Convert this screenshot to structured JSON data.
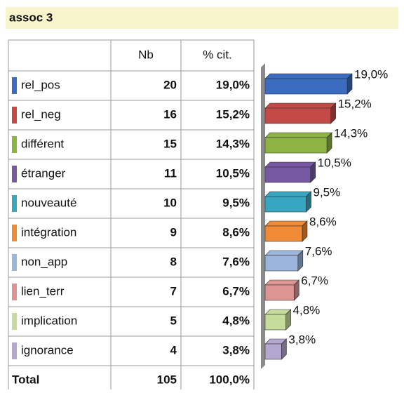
{
  "title": "assoc 3",
  "table": {
    "columns": [
      "Nb",
      "% cit."
    ],
    "rows": [
      {
        "label": "rel_pos",
        "nb": 20,
        "pct": "19,0%"
      },
      {
        "label": "rel_neg",
        "nb": 16,
        "pct": "15,2%"
      },
      {
        "label": "différent",
        "nb": 15,
        "pct": "14,3%"
      },
      {
        "label": "étranger",
        "nb": 11,
        "pct": "10,5%"
      },
      {
        "label": "nouveauté",
        "nb": 10,
        "pct": "9,5%"
      },
      {
        "label": "intégration",
        "nb": 9,
        "pct": "8,6%"
      },
      {
        "label": "non_app",
        "nb": 8,
        "pct": "7,6%"
      },
      {
        "label": "lien_terr",
        "nb": 7,
        "pct": "6,7%"
      },
      {
        "label": "implication",
        "nb": 5,
        "pct": "4,8%"
      },
      {
        "label": "ignorance",
        "nb": 4,
        "pct": "3,8%"
      }
    ],
    "total": {
      "label": "Total",
      "nb": 105,
      "pct": "100,0%"
    }
  },
  "chart_data": {
    "type": "bar",
    "orientation": "horizontal",
    "values": [
      19.0,
      15.2,
      14.3,
      10.5,
      9.5,
      8.6,
      7.6,
      6.7,
      4.8,
      3.8
    ],
    "value_labels": [
      "19,0%",
      "15,2%",
      "14,3%",
      "10,5%",
      "9,5%",
      "8,6%",
      "7,6%",
      "6,7%",
      "4,8%",
      "3,8%"
    ],
    "colors": [
      "#3c6cbf",
      "#c44a48",
      "#8db443",
      "#7758a3",
      "#37a6c2",
      "#f08a34",
      "#9bb5dc",
      "#dc9593",
      "#c5dc9a",
      "#b4a7d0"
    ]
  }
}
